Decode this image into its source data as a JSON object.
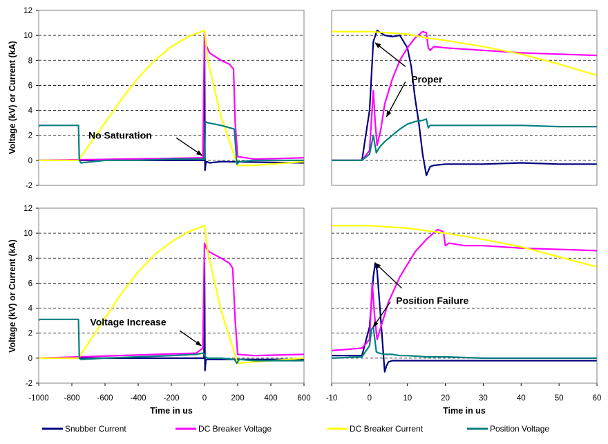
{
  "figure": {
    "ylabel": "Voltage (kV) or Current (kA)",
    "xlabel": "Time in us",
    "legend": [
      {
        "name": "Snubber Current",
        "color": "#000080"
      },
      {
        "name": "DC Breaker Voltage",
        "color": "#ff00ff"
      },
      {
        "name": "DC Breaker Current",
        "color": "#ffff00"
      },
      {
        "name": "Position Voltage",
        "color": "#008080"
      }
    ]
  },
  "chart_data": [
    {
      "type": "line",
      "panel": "top-left",
      "xlim": [
        -1000,
        600
      ],
      "ylim": [
        -2,
        12
      ],
      "xticks": [
        "-1000",
        "-800",
        "-600",
        "-400",
        "-200",
        "0",
        "200",
        "400",
        "600"
      ],
      "yticks": [
        "-2",
        "0",
        "2",
        "4",
        "6",
        "8",
        "10",
        "12"
      ],
      "show_xticks": false,
      "show_yticks": true,
      "ylabel": "Voltage (kV) or Current (kA)",
      "xlabel": "",
      "grid": "horizontal dashed",
      "annotations": [
        {
          "text": "No Saturation",
          "arrow_to": [
            -15,
            0.4
          ],
          "arrow_from": [
            -170,
            1.8
          ]
        }
      ],
      "series": [
        {
          "name": "Snubber Current",
          "color": "#000080",
          "x": [
            -1000,
            -3,
            0,
            3,
            8,
            12,
            30,
            100,
            600
          ],
          "y": [
            0,
            0,
            10.3,
            -0.8,
            -0.2,
            -0.1,
            -0.2,
            -0.1,
            -0.2
          ]
        },
        {
          "name": "DC Breaker Voltage",
          "color": "#ff00ff",
          "x": [
            -1000,
            -10,
            0,
            10,
            30,
            100,
            150,
            175,
            185,
            200,
            300,
            600
          ],
          "y": [
            0,
            0.2,
            10.2,
            9.2,
            8.6,
            8.0,
            7.7,
            7.3,
            3.0,
            0.3,
            0.1,
            0.2
          ]
        },
        {
          "name": "DC Breaker Current",
          "color": "#ffff00",
          "x": [
            -1000,
            -760,
            -740,
            -600,
            -500,
            -400,
            -300,
            -200,
            -100,
            0,
            20,
            100,
            200,
            300,
            400,
            500,
            600
          ],
          "y": [
            0,
            0,
            0.4,
            3.0,
            4.9,
            6.6,
            8.0,
            9.1,
            9.9,
            10.4,
            8.0,
            3.5,
            -0.4,
            -0.4,
            -0.3,
            -0.2,
            -0.1
          ]
        },
        {
          "name": "Position Voltage",
          "color": "#008080",
          "x": [
            -1000,
            -995,
            -760,
            -755,
            -745,
            -600,
            -400,
            -200,
            -20,
            0,
            5,
            20,
            100,
            180,
            195,
            210,
            300,
            600
          ],
          "y": [
            2.7,
            2.8,
            2.8,
            0.0,
            -0.2,
            0.0,
            0.0,
            0.1,
            0.1,
            0.1,
            3.1,
            3.0,
            2.8,
            2.5,
            -0.3,
            -0.1,
            0.0,
            0.0
          ]
        }
      ]
    },
    {
      "type": "line",
      "panel": "top-right",
      "xlim": [
        -10,
        60
      ],
      "ylim": [
        -2,
        12
      ],
      "xticks": [
        "-10",
        "0",
        "10",
        "20",
        "30",
        "40",
        "50",
        "60"
      ],
      "yticks": [
        "-2",
        "0",
        "2",
        "4",
        "6",
        "8",
        "10",
        "12"
      ],
      "show_xticks": false,
      "show_yticks": false,
      "grid": "horizontal dashed",
      "annotations": [
        {
          "text": "Proper",
          "arrow_to": [
            [
              1.5,
              9.4
            ],
            [
              4.5,
              3.5
            ]
          ],
          "arrow_from": [
            [
              9.5,
              7.5
            ],
            [
              9.5,
              6.3
            ]
          ]
        }
      ],
      "series": [
        {
          "name": "Snubber Current",
          "color": "#000080",
          "x": [
            -10,
            -2,
            0,
            1,
            2,
            4,
            6,
            8,
            10,
            11,
            12,
            13,
            14,
            15,
            16,
            17,
            20,
            30,
            40,
            50,
            60
          ],
          "y": [
            0,
            0,
            4.0,
            9.5,
            10.4,
            10.0,
            9.9,
            10.0,
            9.0,
            7.5,
            5.0,
            3.0,
            0.5,
            -1.2,
            -0.5,
            -0.4,
            -0.3,
            -0.3,
            -0.2,
            -0.3,
            -0.3
          ]
        },
        {
          "name": "DC Breaker Voltage",
          "color": "#ff00ff",
          "x": [
            -10,
            -2,
            0,
            1,
            1.5,
            2,
            3,
            4,
            6,
            8,
            10,
            12,
            14,
            15,
            15.5,
            16,
            17,
            20,
            30,
            40,
            50,
            60
          ],
          "y": [
            0,
            0,
            0.8,
            5.6,
            3.0,
            1.2,
            2.5,
            4.5,
            6.5,
            8.0,
            9.0,
            9.8,
            10.3,
            10.2,
            9.0,
            8.8,
            9.1,
            9.0,
            8.8,
            8.6,
            8.5,
            8.4
          ]
        },
        {
          "name": "DC Breaker Current",
          "color": "#ffff00",
          "x": [
            -10,
            0,
            5,
            10,
            15,
            20,
            30,
            40,
            50,
            60
          ],
          "y": [
            10.3,
            10.3,
            10.2,
            10.1,
            9.8,
            9.6,
            9.1,
            8.5,
            7.7,
            6.8
          ]
        },
        {
          "name": "Position Voltage",
          "color": "#008080",
          "x": [
            -10,
            -2,
            0,
            1,
            1.8,
            2.5,
            4,
            6,
            8,
            10,
            12,
            14,
            15,
            15.5,
            16,
            20,
            30,
            40,
            50,
            60
          ],
          "y": [
            0,
            0,
            0.5,
            2.0,
            0.6,
            1.0,
            1.5,
            2.0,
            2.5,
            2.9,
            3.1,
            3.2,
            3.3,
            2.6,
            2.8,
            2.8,
            2.8,
            2.8,
            2.7,
            2.7
          ]
        }
      ]
    },
    {
      "type": "line",
      "panel": "bottom-left",
      "xlim": [
        -1000,
        600
      ],
      "ylim": [
        -2,
        12
      ],
      "xticks": [
        "-1000",
        "-800",
        "-600",
        "-400",
        "-200",
        "0",
        "200",
        "400",
        "600"
      ],
      "yticks": [
        "-2",
        "0",
        "2",
        "4",
        "6",
        "8",
        "10",
        "12"
      ],
      "show_xticks": true,
      "show_yticks": true,
      "ylabel": "Voltage (kV) or Current (kA)",
      "xlabel": "Time in us",
      "grid": "horizontal dashed",
      "annotations": [
        {
          "text": "Voltage Increase",
          "arrow_to": [
            -20,
            1.0
          ],
          "arrow_from": [
            -150,
            2.2
          ]
        }
      ],
      "series": [
        {
          "name": "Snubber Current",
          "color": "#000080",
          "x": [
            -1000,
            -3,
            0,
            3,
            8,
            12,
            30,
            100,
            600
          ],
          "y": [
            0,
            0,
            7.6,
            -1.0,
            -0.2,
            -0.1,
            -0.1,
            -0.1,
            -0.1
          ]
        },
        {
          "name": "DC Breaker Voltage",
          "color": "#ff00ff",
          "x": [
            -1000,
            -50,
            -10,
            0,
            10,
            30,
            100,
            150,
            170,
            185,
            200,
            300,
            600
          ],
          "y": [
            0,
            0.4,
            0.8,
            9.2,
            8.8,
            8.5,
            8.0,
            7.6,
            7.2,
            3.0,
            0.3,
            0.2,
            0.3
          ]
        },
        {
          "name": "DC Breaker Current",
          "color": "#ffff00",
          "x": [
            -1000,
            -760,
            -740,
            -600,
            -500,
            -400,
            -300,
            -200,
            -100,
            0,
            20,
            100,
            200,
            300,
            400,
            500,
            600
          ],
          "y": [
            0,
            0,
            0.4,
            3.2,
            5.2,
            6.9,
            8.3,
            9.3,
            10.1,
            10.6,
            8.5,
            3.8,
            -0.4,
            -0.3,
            -0.2,
            -0.1,
            0.0
          ]
        },
        {
          "name": "Position Voltage",
          "color": "#008080",
          "x": [
            -1000,
            -995,
            -760,
            -755,
            -745,
            -600,
            -400,
            -200,
            -50,
            -10,
            0,
            5,
            20,
            100,
            180,
            195,
            210,
            300,
            600
          ],
          "y": [
            3.0,
            3.1,
            3.1,
            0.0,
            -0.1,
            0.0,
            0.1,
            0.2,
            0.3,
            0.4,
            0.3,
            0.1,
            0.0,
            0.0,
            -0.1,
            -0.4,
            -0.1,
            -0.2,
            -0.2
          ]
        }
      ]
    },
    {
      "type": "line",
      "panel": "bottom-right",
      "xlim": [
        -10,
        60
      ],
      "ylim": [
        -2,
        12
      ],
      "xticks": [
        "-10",
        "0",
        "10",
        "20",
        "30",
        "40",
        "50",
        "60"
      ],
      "yticks": [
        "-2",
        "0",
        "2",
        "4",
        "6",
        "8",
        "10",
        "12"
      ],
      "show_xticks": true,
      "show_yticks": false,
      "xlabel": "Time in us",
      "grid": "horizontal dashed",
      "annotations": [
        {
          "text": "Position Failure",
          "arrow_to": [
            [
              1.5,
              7.6
            ],
            [
              1.0,
              2.5
            ]
          ],
          "arrow_from": [
            [
              8.5,
              5.6
            ],
            [
              5.5,
              4.5
            ]
          ]
        }
      ],
      "series": [
        {
          "name": "Snubber Current",
          "color": "#000080",
          "x": [
            -10,
            -2,
            0,
            1,
            1.5,
            2,
            3,
            4,
            4.5,
            5,
            6,
            8,
            10,
            20,
            30,
            40,
            50,
            60
          ],
          "y": [
            0.2,
            0.2,
            2.5,
            6.5,
            7.6,
            7.0,
            3.0,
            -1.1,
            -0.6,
            -0.3,
            -0.2,
            -0.2,
            -0.2,
            -0.2,
            -0.2,
            -0.2,
            -0.2,
            -0.2
          ]
        },
        {
          "name": "DC Breaker Voltage",
          "color": "#ff00ff",
          "x": [
            -10,
            -2,
            0,
            0.7,
            1.3,
            2,
            3,
            5,
            8,
            10,
            12,
            15,
            18,
            19.5,
            20,
            21,
            25,
            30,
            40,
            50,
            60
          ],
          "y": [
            0.6,
            0.8,
            1.5,
            6.0,
            3.5,
            1.5,
            2.5,
            4.5,
            6.5,
            7.5,
            8.5,
            9.5,
            10.3,
            10.1,
            9.0,
            9.2,
            9.0,
            9.0,
            8.8,
            8.7,
            8.6
          ]
        },
        {
          "name": "DC Breaker Current",
          "color": "#ffff00",
          "x": [
            -10,
            0,
            5,
            10,
            15,
            20,
            30,
            40,
            50,
            60
          ],
          "y": [
            10.6,
            10.6,
            10.5,
            10.4,
            10.2,
            10.0,
            9.5,
            8.9,
            8.1,
            7.3
          ]
        },
        {
          "name": "Position Voltage",
          "color": "#008080",
          "x": [
            -10,
            -2,
            0,
            0.5,
            1,
            1.8,
            2.5,
            4,
            6,
            8,
            10,
            15,
            20,
            30,
            40,
            50,
            60
          ],
          "y": [
            0,
            0.1,
            1.0,
            2.3,
            2.5,
            0.5,
            0.4,
            0.3,
            0.3,
            0.2,
            0.2,
            0.1,
            0.1,
            0.0,
            0.0,
            0.0,
            0.0
          ]
        }
      ]
    }
  ]
}
